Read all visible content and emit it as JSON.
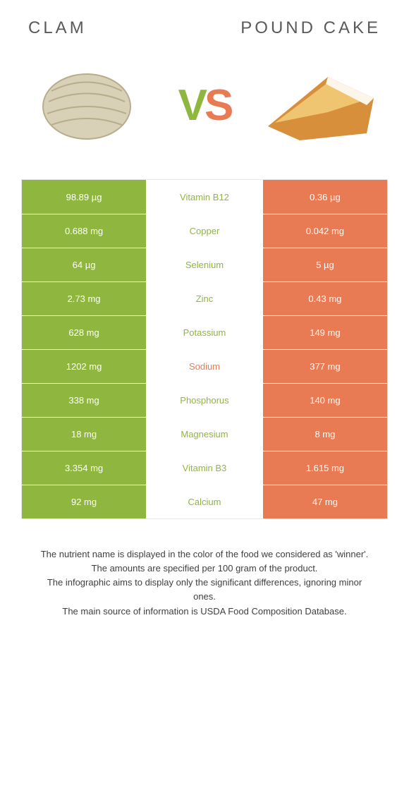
{
  "colors": {
    "clam": "#8fb63f",
    "cake": "#e87b53",
    "v_fill": "#8fb63f",
    "s_fill": "#e87b53",
    "title_text": "#5a5a5a",
    "note_text": "#3f3f3f",
    "clam_shell": "#d8d1b7",
    "clam_shadow": "#b7ad8c",
    "cake_crust": "#d78f3c",
    "cake_crumb": "#f0c572",
    "cake_sugar": "#fbf5ea"
  },
  "food_left": {
    "title": "CLAM"
  },
  "food_right": {
    "title": "POUND CAKE"
  },
  "vs": {
    "v": "V",
    "s": "S"
  },
  "rows": [
    {
      "left": "98.89 µg",
      "name": "Vitamin B12",
      "right": "0.36 µg",
      "winner": "left"
    },
    {
      "left": "0.688 mg",
      "name": "Copper",
      "right": "0.042 mg",
      "winner": "left"
    },
    {
      "left": "64 µg",
      "name": "Selenium",
      "right": "5 µg",
      "winner": "left"
    },
    {
      "left": "2.73 mg",
      "name": "Zinc",
      "right": "0.43 mg",
      "winner": "left"
    },
    {
      "left": "628 mg",
      "name": "Potassium",
      "right": "149 mg",
      "winner": "left"
    },
    {
      "left": "1202 mg",
      "name": "Sodium",
      "right": "377 mg",
      "winner": "right"
    },
    {
      "left": "338 mg",
      "name": "Phosphorus",
      "right": "140 mg",
      "winner": "left"
    },
    {
      "left": "18 mg",
      "name": "Magnesium",
      "right": "8 mg",
      "winner": "left"
    },
    {
      "left": "3.354 mg",
      "name": "Vitamin B3",
      "right": "1.615 mg",
      "winner": "left"
    },
    {
      "left": "92 mg",
      "name": "Calcium",
      "right": "47 mg",
      "winner": "left"
    }
  ],
  "footnote": {
    "l1": "The nutrient name is displayed in the color of the food we considered as 'winner'.",
    "l2": "The amounts are specified per 100 gram of the product.",
    "l3": "The infographic aims to display only the significant differences, ignoring minor ones.",
    "l4": "The main source of information is USDA Food Composition Database."
  }
}
